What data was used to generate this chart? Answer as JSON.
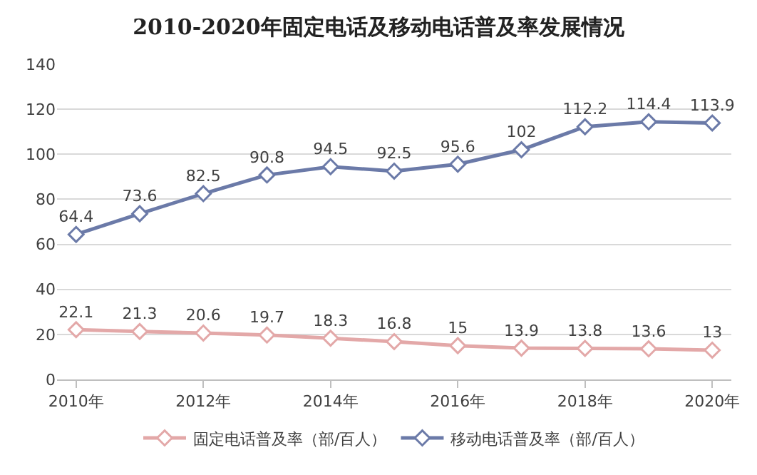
{
  "chart_data": {
    "type": "line",
    "title": "2010-2020年固定电话及移动电话普及率发展情况",
    "categories": [
      "2010年",
      null,
      "2012年",
      null,
      "2014年",
      null,
      "2016年",
      null,
      "2018年",
      null,
      "2020年"
    ],
    "series": [
      {
        "name": "固定电话普及率（部/百人）",
        "color": "#e3a8a8",
        "values": [
          22.1,
          21.3,
          20.6,
          19.7,
          18.3,
          16.8,
          15,
          13.9,
          13.8,
          13.6,
          13
        ]
      },
      {
        "name": "移动电话普及率（部/百人）",
        "color": "#6b7aa8",
        "values": [
          64.4,
          73.6,
          82.5,
          90.8,
          94.5,
          92.5,
          95.6,
          102,
          112.2,
          114.4,
          113.9
        ]
      }
    ],
    "ylim": [
      0,
      140
    ],
    "yticks": [
      0,
      20,
      40,
      60,
      80,
      100,
      120,
      140
    ],
    "grid": "y",
    "legend": "bottom",
    "marker": "diamond",
    "line_style": "solid",
    "data_labels": true
  }
}
